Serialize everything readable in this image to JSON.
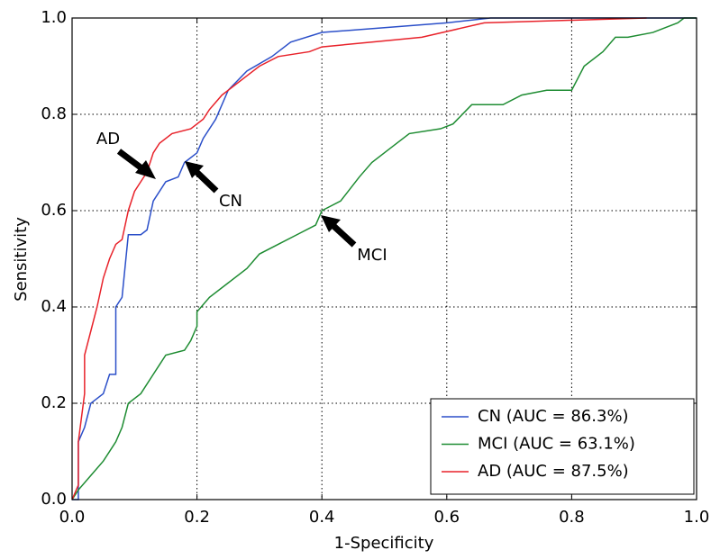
{
  "chart_data": {
    "type": "line",
    "xlabel": "1-Specificity",
    "ylabel": "Sensitivity",
    "xlim": [
      0,
      1
    ],
    "ylim": [
      0,
      1
    ],
    "xticks": [
      {
        "value": 0,
        "label": "0.0"
      },
      0.2,
      0.4,
      0.6,
      0.8,
      {
        "value": 1,
        "label": "1.0"
      }
    ],
    "yticks": [
      {
        "value": 0,
        "label": "0.0"
      },
      0.2,
      0.4,
      0.6,
      0.8,
      {
        "value": 1,
        "label": "1.0"
      }
    ],
    "grid": true,
    "legend": "lower right",
    "annotations": [
      "AD",
      "CN",
      "MCI"
    ],
    "series": [
      {
        "name": "CN (AUC = 86.3%)",
        "color": "#2b4fc9",
        "x": [
          0,
          0.01,
          0.01,
          0.02,
          0.03,
          0.05,
          0.06,
          0.07,
          0.07,
          0.08,
          0.09,
          0.11,
          0.12,
          0.13,
          0.15,
          0.17,
          0.18,
          0.2,
          0.21,
          0.23,
          0.25,
          0.28,
          0.32,
          0.35,
          0.4,
          0.5,
          0.6,
          0.67,
          1
        ],
        "values": [
          0,
          0,
          0.12,
          0.15,
          0.2,
          0.22,
          0.26,
          0.26,
          0.4,
          0.42,
          0.55,
          0.55,
          0.56,
          0.62,
          0.66,
          0.67,
          0.7,
          0.72,
          0.75,
          0.79,
          0.85,
          0.89,
          0.92,
          0.95,
          0.97,
          0.98,
          0.99,
          1,
          1
        ]
      },
      {
        "name": "MCI (AUC = 63.1%)",
        "color": "#1e8c32",
        "x": [
          0,
          0.01,
          0.03,
          0.05,
          0.07,
          0.08,
          0.09,
          0.11,
          0.13,
          0.14,
          0.15,
          0.18,
          0.19,
          0.2,
          0.2,
          0.22,
          0.25,
          0.28,
          0.3,
          0.33,
          0.36,
          0.39,
          0.4,
          0.43,
          0.46,
          0.48,
          0.51,
          0.54,
          0.59,
          0.61,
          0.64,
          0.69,
          0.72,
          0.76,
          0.8,
          0.82,
          0.85,
          0.87,
          0.89,
          0.93,
          0.95,
          0.97,
          0.98,
          1
        ],
        "values": [
          0,
          0.02,
          0.05,
          0.08,
          0.12,
          0.15,
          0.2,
          0.22,
          0.26,
          0.28,
          0.3,
          0.31,
          0.33,
          0.36,
          0.39,
          0.42,
          0.45,
          0.48,
          0.51,
          0.53,
          0.55,
          0.57,
          0.6,
          0.62,
          0.67,
          0.7,
          0.73,
          0.76,
          0.77,
          0.78,
          0.82,
          0.82,
          0.84,
          0.85,
          0.85,
          0.9,
          0.93,
          0.96,
          0.96,
          0.97,
          0.98,
          0.99,
          1,
          1
        ]
      },
      {
        "name": "AD (AUC = 87.5%)",
        "color": "#e8222a",
        "x": [
          0,
          0.01,
          0.01,
          0.02,
          0.02,
          0.03,
          0.04,
          0.05,
          0.06,
          0.07,
          0.08,
          0.09,
          0.1,
          0.11,
          0.12,
          0.13,
          0.14,
          0.16,
          0.19,
          0.21,
          0.22,
          0.24,
          0.26,
          0.28,
          0.3,
          0.33,
          0.38,
          0.4,
          0.48,
          0.56,
          0.66,
          0.92
        ],
        "values": [
          0,
          0.03,
          0.12,
          0.22,
          0.3,
          0.35,
          0.4,
          0.46,
          0.5,
          0.53,
          0.54,
          0.6,
          0.64,
          0.66,
          0.68,
          0.72,
          0.74,
          0.76,
          0.77,
          0.79,
          0.81,
          0.84,
          0.86,
          0.88,
          0.9,
          0.92,
          0.93,
          0.94,
          0.95,
          0.96,
          0.99,
          1
        ]
      }
    ]
  }
}
